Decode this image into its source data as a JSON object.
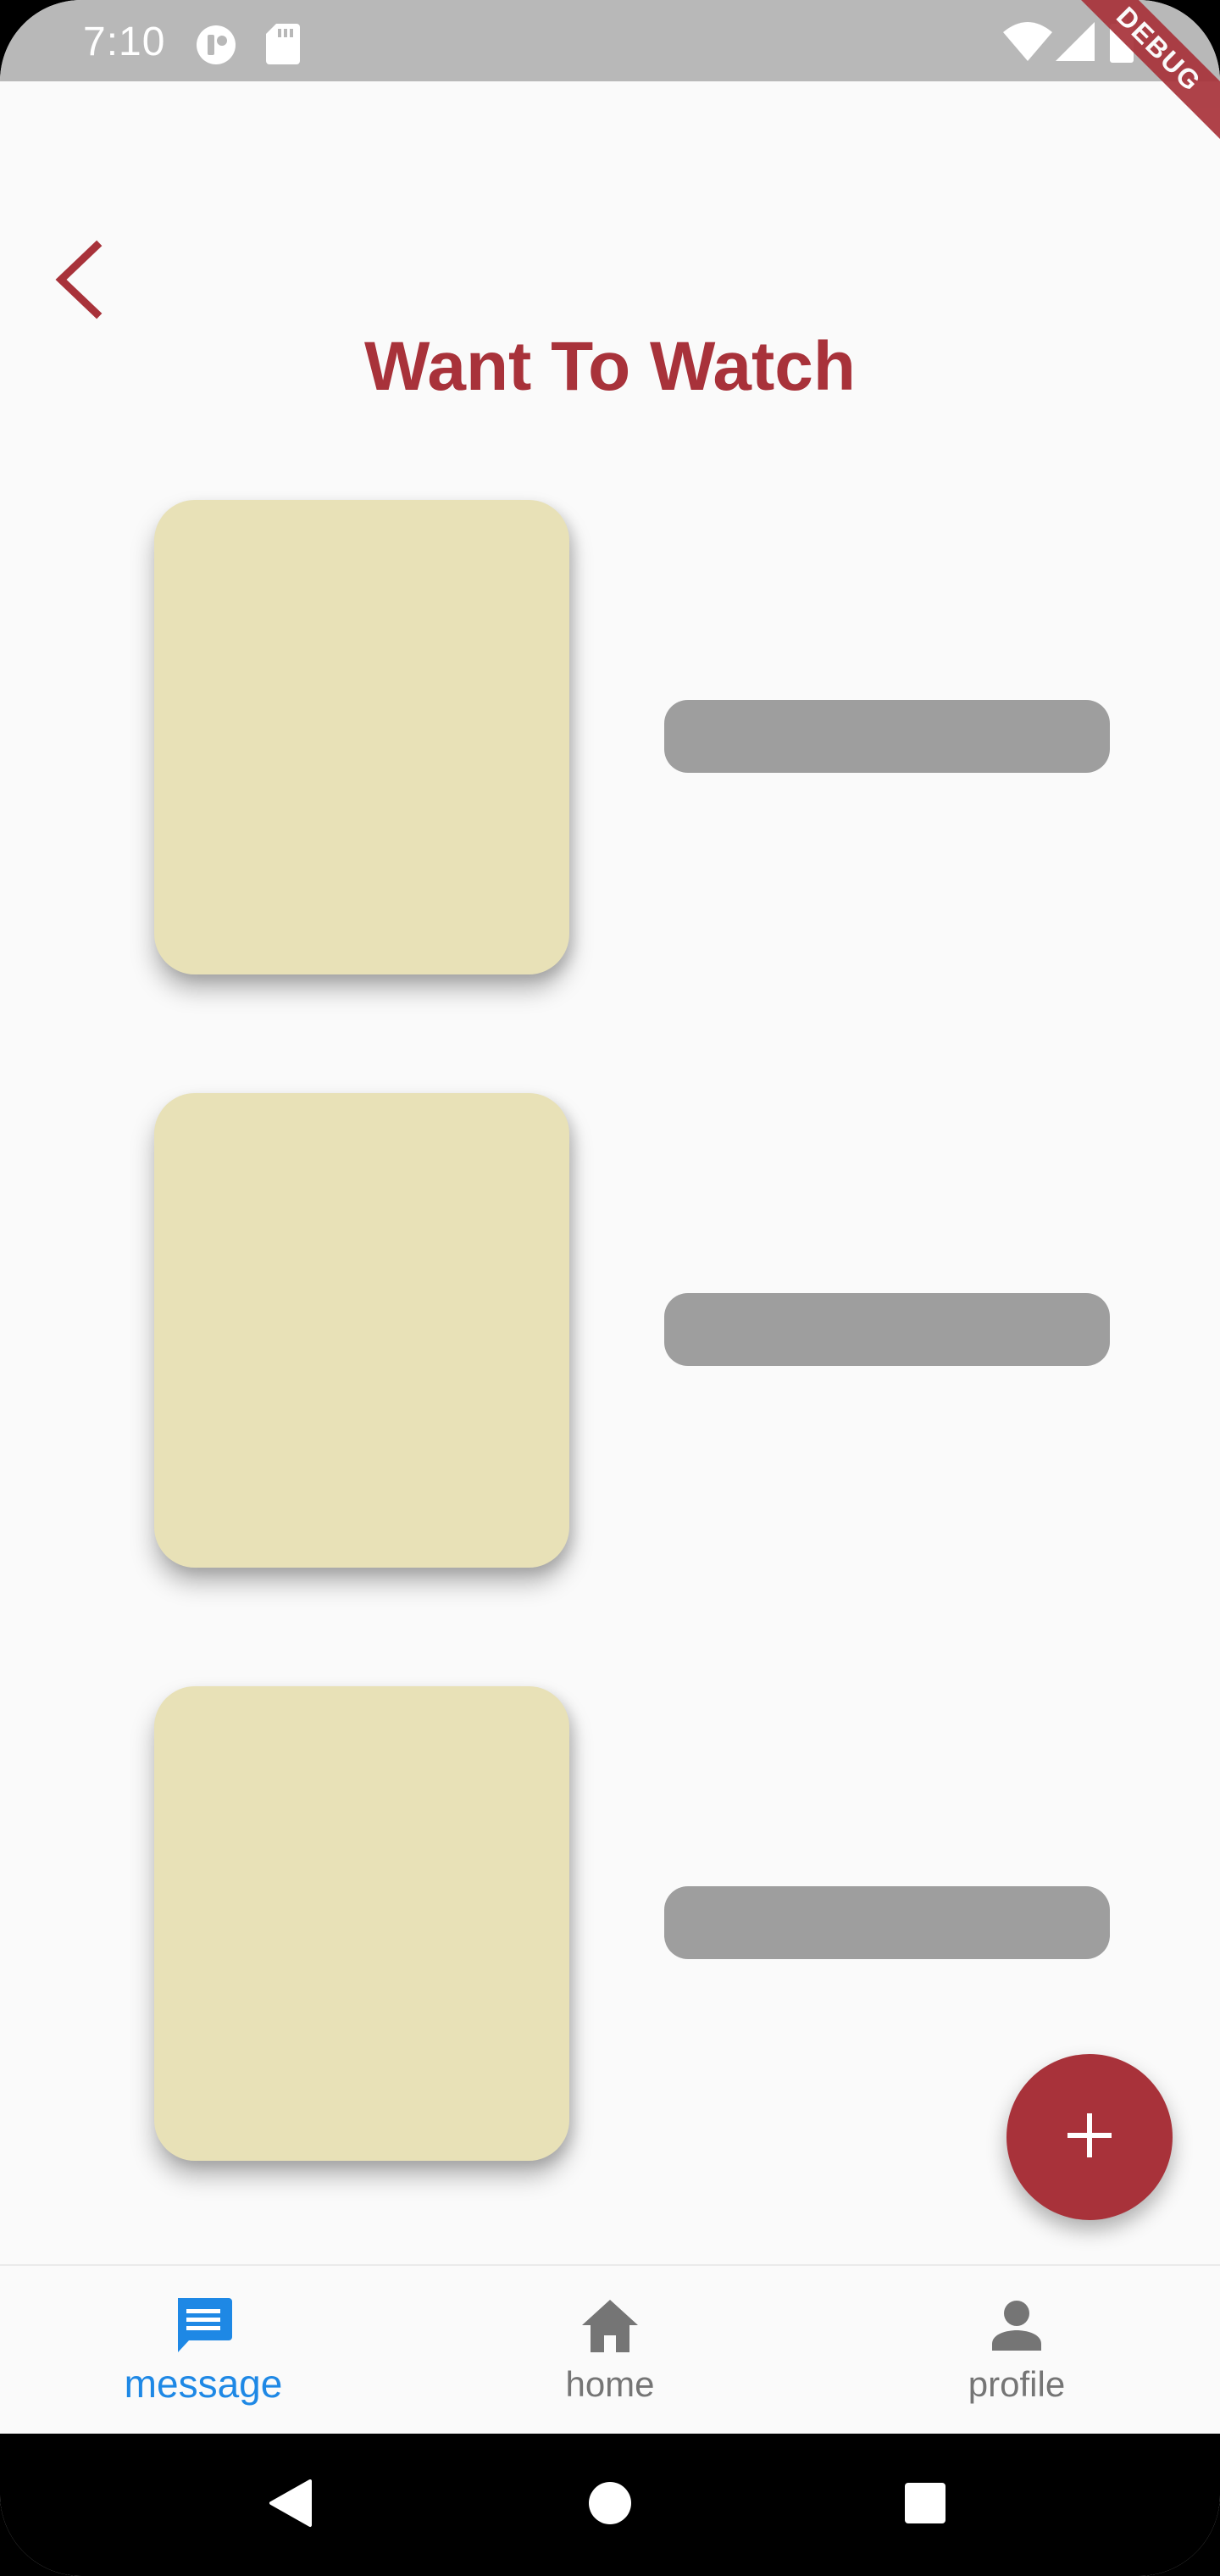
{
  "status_bar": {
    "time": "7:10",
    "left_icons": [
      "app-notification-icon",
      "sd-card-icon"
    ],
    "right_icons": [
      "wifi-icon",
      "cellular-signal-icon",
      "battery-icon"
    ]
  },
  "debug_banner": {
    "label": "DEBUG"
  },
  "header": {
    "back_icon": "chevron-left-icon",
    "title": "Want To Watch"
  },
  "list": {
    "items": [
      {
        "poster_color": "#E8E1B7",
        "label_placeholder_color": "#9E9E9E"
      },
      {
        "poster_color": "#E8E1B7",
        "label_placeholder_color": "#9E9E9E"
      },
      {
        "poster_color": "#E8E1B7",
        "label_placeholder_color": "#9E9E9E"
      }
    ]
  },
  "fab": {
    "icon": "plus-icon",
    "color": "#A8323A"
  },
  "bottom_nav": {
    "items": [
      {
        "label": "message",
        "icon": "message-icon",
        "active": true
      },
      {
        "label": "home",
        "icon": "home-icon",
        "active": false
      },
      {
        "label": "profile",
        "icon": "profile-icon",
        "active": false
      }
    ],
    "active_color": "#1E88E5",
    "inactive_color": "#757575"
  },
  "system_nav": {
    "icons": [
      "back-triangle-icon",
      "home-circle-icon",
      "recents-square-icon"
    ]
  },
  "colors": {
    "accent": "#A8323A",
    "background": "#FAFAFA",
    "status_bar": "#B8B8B8"
  }
}
